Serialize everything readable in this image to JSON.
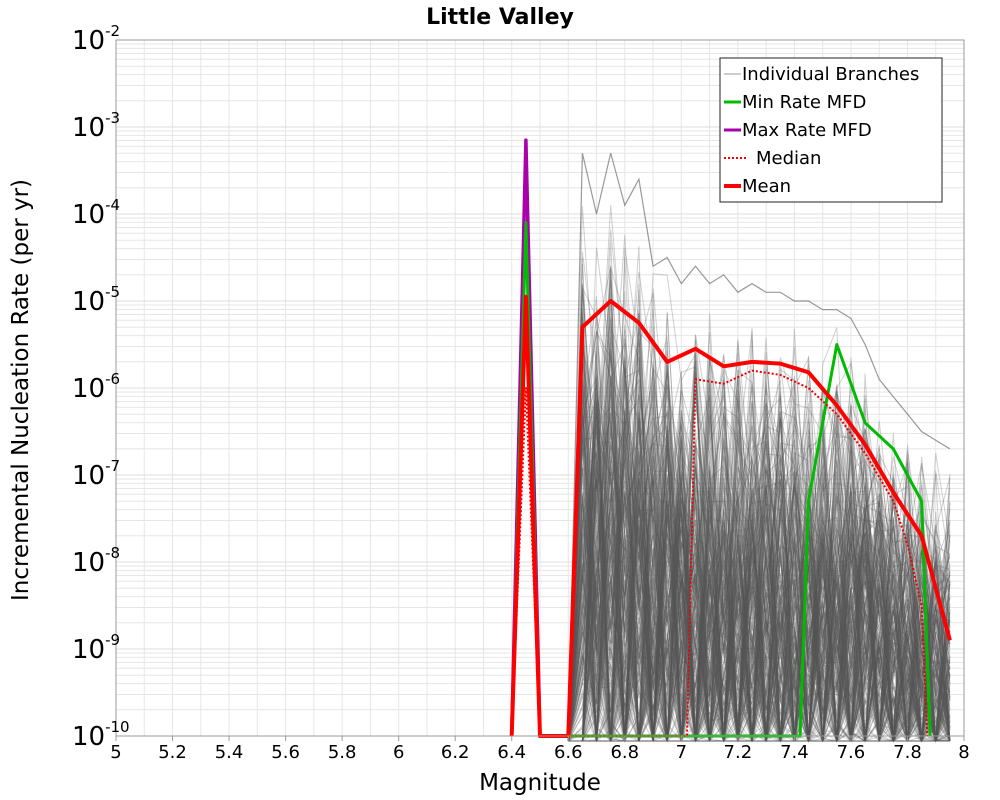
{
  "chart_data": {
    "type": "line",
    "title": "Little Valley",
    "xlabel": "Magnitude",
    "ylabel": "Incremental Nucleation Rate (per yr)",
    "xlim": [
      5,
      8
    ],
    "ylim_log10": [
      -10,
      -2
    ],
    "yscale": "log",
    "x_ticks": [
      "5",
      "5.2",
      "5.4",
      "5.6",
      "5.8",
      "6",
      "6.2",
      "6.4",
      "6.6",
      "6.8",
      "7",
      "7.2",
      "7.4",
      "7.6",
      "7.8",
      "8"
    ],
    "y_ticks": [
      {
        "base": "10",
        "exp": "-2",
        "log": -2
      },
      {
        "base": "10",
        "exp": "-3",
        "log": -3
      },
      {
        "base": "10",
        "exp": "-4",
        "log": -4
      },
      {
        "base": "10",
        "exp": "-5",
        "log": -5
      },
      {
        "base": "10",
        "exp": "-6",
        "log": -6
      },
      {
        "base": "10",
        "exp": "-7",
        "log": -7
      },
      {
        "base": "10",
        "exp": "-8",
        "log": -8
      },
      {
        "base": "10",
        "exp": "-9",
        "log": -9
      },
      {
        "base": "10",
        "exp": "-10",
        "log": -10
      }
    ],
    "grid": true,
    "legend_position": "top-right",
    "legend": [
      "Individual Branches",
      "Min Rate MFD",
      "Max Rate MFD",
      "Median",
      "Mean"
    ],
    "colors": {
      "branches": "#555555",
      "min": "#00bb00",
      "max": "#aa00aa",
      "median": "#ee0000",
      "mean": "#ff0000",
      "grid": "#e6e6e6"
    },
    "branches_envelope": {
      "x": [
        6.6,
        6.65,
        6.7,
        6.75,
        6.8,
        6.85,
        6.9,
        6.95,
        7.0,
        7.05,
        7.1,
        7.15,
        7.2,
        7.25,
        7.3,
        7.35,
        7.4,
        7.45,
        7.5,
        7.55,
        7.6,
        7.65,
        7.7,
        7.75,
        7.8,
        7.85,
        7.9,
        7.95
      ],
      "upper_log": [
        -10,
        -3.3,
        -4.0,
        -3.3,
        -3.9,
        -3.6,
        -4.6,
        -4.5,
        -4.8,
        -4.6,
        -4.8,
        -4.7,
        -4.9,
        -4.8,
        -4.9,
        -4.9,
        -5.0,
        -5.0,
        -5.1,
        -5.1,
        -5.2,
        -5.5,
        -5.9,
        -6.1,
        -6.3,
        -6.5,
        -6.6,
        -6.7
      ],
      "lower_log": [
        -10,
        -10,
        -10,
        -10,
        -10,
        -10,
        -10,
        -10,
        -10,
        -10,
        -10,
        -10,
        -10,
        -10,
        -10,
        -10,
        -10,
        -10,
        -10,
        -10,
        -10,
        -10,
        -10,
        -10,
        -10,
        -10,
        -10,
        -10
      ],
      "spike_x": [
        6.45
      ],
      "spike_log": [
        -3.15
      ]
    },
    "series": [
      {
        "name": "Max Rate MFD",
        "x": [
          6.4,
          6.45,
          6.5
        ],
        "y_log": [
          -10,
          -3.15,
          -10
        ]
      },
      {
        "name": "Min Rate MFD",
        "x": [
          6.4,
          6.45,
          6.5,
          7.42,
          7.45,
          7.55,
          7.65,
          7.75,
          7.85,
          7.88
        ],
        "y_log": [
          -10,
          -4.1,
          -10,
          -10,
          -7.3,
          -5.5,
          -6.4,
          -6.7,
          -7.3,
          -10
        ]
      },
      {
        "name": "Median",
        "x": [
          6.4,
          6.45,
          6.5,
          7.02,
          7.05,
          7.15,
          7.25,
          7.35,
          7.45,
          7.55,
          7.65,
          7.75,
          7.8,
          7.85,
          7.87
        ],
        "y_log": [
          -10,
          -6.0,
          -10,
          -10,
          -5.9,
          -5.95,
          -5.8,
          -5.85,
          -6.0,
          -6.3,
          -6.75,
          -7.3,
          -7.8,
          -8.5,
          -10
        ]
      },
      {
        "name": "Mean",
        "x": [
          6.4,
          6.45,
          6.5,
          6.6,
          6.65,
          6.75,
          6.85,
          6.95,
          7.05,
          7.15,
          7.25,
          7.35,
          7.45,
          7.55,
          7.65,
          7.75,
          7.85,
          7.95
        ],
        "y_log": [
          -10,
          -4.95,
          -10,
          -10,
          -5.3,
          -5.0,
          -5.25,
          -5.7,
          -5.55,
          -5.75,
          -5.7,
          -5.72,
          -5.82,
          -6.2,
          -6.65,
          -7.2,
          -7.7,
          -8.9
        ]
      }
    ]
  }
}
